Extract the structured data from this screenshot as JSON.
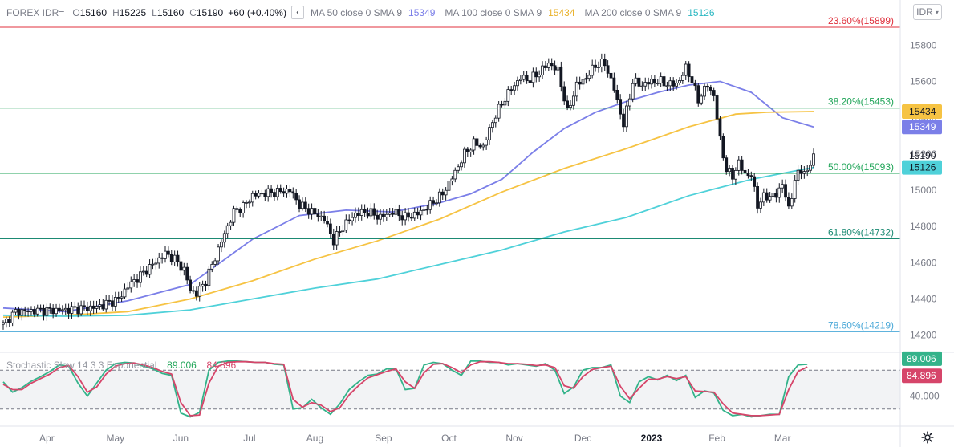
{
  "legend": {
    "symbol": "FOREX IDR=",
    "o_label": "O",
    "o_value": "15160",
    "h_label": "H",
    "h_value": "15225",
    "l_label": "L",
    "l_value": "15160",
    "c_label": "C",
    "c_value": "15190",
    "change": "+60 (+0.40%)",
    "collapse_icon": "chevron-left-icon",
    "ma50_label": "MA 50 close 0 SMA 9",
    "ma50_value": "15349",
    "ma100_label": "MA 100 close 0 SMA 9",
    "ma100_value": "15434",
    "ma200_label": "MA 200 close 0 SMA 9",
    "ma200_value": "15126"
  },
  "currency_button": "IDR",
  "stochastic": {
    "label": "Stochastic Slow 14 3 3 Exponential",
    "k_value": "89.006",
    "d_value": "84.896"
  },
  "settings_icon": "gear-icon",
  "colors": {
    "ma50": "#7b7fe8",
    "ma100": "#f6c343",
    "ma200": "#4fd1d9",
    "fib_2360": "#e0313d",
    "fib_3820": "#22a65a",
    "fib_5000": "#22a65a",
    "fib_6180": "#1b8a73",
    "fib_7860": "#4aa8d8",
    "stoch_k": "#33b38a",
    "stoch_d": "#d6456a"
  },
  "chart_data": {
    "type": "candlestick",
    "x_axis_labels": [
      "Apr",
      "May",
      "Jun",
      "Jul",
      "Aug",
      "Sep",
      "Oct",
      "Nov",
      "Dec",
      "2023",
      "Feb",
      "Mar"
    ],
    "y_axis_labels": [
      "15800",
      "15600",
      "15400",
      "15200",
      "15000",
      "14800",
      "14600",
      "14400",
      "14200"
    ],
    "ylim": [
      14110,
      15930
    ],
    "price_path": [
      [
        0,
        14260
      ],
      [
        4,
        14330
      ],
      [
        10,
        14335
      ],
      [
        20,
        14340
      ],
      [
        30,
        14355
      ],
      [
        37,
        14400
      ],
      [
        40,
        14470
      ],
      [
        44,
        14530
      ],
      [
        48,
        14590
      ],
      [
        52,
        14650
      ],
      [
        55,
        14620
      ],
      [
        58,
        14560
      ],
      [
        60,
        14450
      ],
      [
        62,
        14430
      ],
      [
        65,
        14500
      ],
      [
        68,
        14630
      ],
      [
        71,
        14760
      ],
      [
        74,
        14880
      ],
      [
        77,
        14910
      ],
      [
        80,
        14970
      ],
      [
        84,
        14985
      ],
      [
        88,
        14990
      ],
      [
        92,
        15000
      ],
      [
        95,
        14920
      ],
      [
        99,
        14880
      ],
      [
        103,
        14840
      ],
      [
        106,
        14720
      ],
      [
        109,
        14800
      ],
      [
        113,
        14870
      ],
      [
        117,
        14880
      ],
      [
        121,
        14850
      ],
      [
        125,
        14880
      ],
      [
        129,
        14850
      ],
      [
        133,
        14870
      ],
      [
        137,
        14920
      ],
      [
        141,
        14980
      ],
      [
        145,
        15100
      ],
      [
        148,
        15200
      ],
      [
        151,
        15260
      ],
      [
        154,
        15240
      ],
      [
        157,
        15380
      ],
      [
        160,
        15480
      ],
      [
        163,
        15560
      ],
      [
        166,
        15620
      ],
      [
        169,
        15610
      ],
      [
        172,
        15650
      ],
      [
        175,
        15700
      ],
      [
        178,
        15660
      ],
      [
        181,
        15430
      ],
      [
        184,
        15580
      ],
      [
        187,
        15620
      ],
      [
        190,
        15690
      ],
      [
        193,
        15700
      ],
      [
        196,
        15560
      ],
      [
        199,
        15360
      ],
      [
        202,
        15600
      ],
      [
        205,
        15580
      ],
      [
        208,
        15600
      ],
      [
        211,
        15600
      ],
      [
        214,
        15580
      ],
      [
        217,
        15600
      ],
      [
        219,
        15680
      ],
      [
        221,
        15600
      ],
      [
        223,
        15500
      ],
      [
        226,
        15580
      ],
      [
        228,
        15520
      ],
      [
        230,
        15280
      ],
      [
        232,
        15110
      ],
      [
        234,
        15080
      ],
      [
        236,
        15150
      ],
      [
        238,
        15090
      ],
      [
        240,
        15080
      ],
      [
        242,
        14920
      ],
      [
        244,
        14960
      ],
      [
        246,
        14970
      ],
      [
        248,
        14970
      ],
      [
        250,
        15040
      ],
      [
        252,
        14890
      ],
      [
        254,
        15060
      ],
      [
        256,
        15110
      ],
      [
        258,
        15100
      ],
      [
        260,
        15190
      ]
    ],
    "ma50": [
      [
        0,
        14350
      ],
      [
        20,
        14330
      ],
      [
        40,
        14390
      ],
      [
        60,
        14480
      ],
      [
        80,
        14730
      ],
      [
        95,
        14860
      ],
      [
        110,
        14890
      ],
      [
        125,
        14880
      ],
      [
        140,
        14930
      ],
      [
        150,
        14980
      ],
      [
        160,
        15060
      ],
      [
        170,
        15210
      ],
      [
        180,
        15340
      ],
      [
        190,
        15430
      ],
      [
        200,
        15490
      ],
      [
        210,
        15540
      ],
      [
        220,
        15580
      ],
      [
        230,
        15600
      ],
      [
        240,
        15540
      ],
      [
        250,
        15400
      ],
      [
        260,
        15349
      ]
    ],
    "ma100": [
      [
        0,
        14300
      ],
      [
        20,
        14310
      ],
      [
        40,
        14330
      ],
      [
        60,
        14400
      ],
      [
        80,
        14500
      ],
      [
        100,
        14620
      ],
      [
        120,
        14720
      ],
      [
        140,
        14840
      ],
      [
        160,
        14990
      ],
      [
        180,
        15120
      ],
      [
        200,
        15230
      ],
      [
        220,
        15350
      ],
      [
        235,
        15420
      ],
      [
        245,
        15430
      ],
      [
        260,
        15434
      ]
    ],
    "ma200": [
      [
        0,
        14310
      ],
      [
        20,
        14305
      ],
      [
        40,
        14310
      ],
      [
        60,
        14340
      ],
      [
        80,
        14400
      ],
      [
        100,
        14460
      ],
      [
        120,
        14510
      ],
      [
        140,
        14590
      ],
      [
        160,
        14670
      ],
      [
        180,
        14770
      ],
      [
        200,
        14850
      ],
      [
        220,
        14970
      ],
      [
        240,
        15060
      ],
      [
        255,
        15110
      ],
      [
        260,
        15126
      ]
    ],
    "fibonacci": [
      {
        "label": "23.60%(15899)",
        "value": 15899,
        "color_key": "fib_2360"
      },
      {
        "label": "38.20%(15453)",
        "value": 15453,
        "color_key": "fib_3820"
      },
      {
        "label": "50.00%(15093)",
        "value": 15093,
        "color_key": "fib_5000"
      },
      {
        "label": "61.80%(14732)",
        "value": 14732,
        "color_key": "fib_6180"
      },
      {
        "label": "78.60%(14219)",
        "value": 14219,
        "color_key": "fib_7860"
      }
    ],
    "price_tags": [
      {
        "text": "15434",
        "value": 15434,
        "color_key": "ma100",
        "fg": "#131722"
      },
      {
        "text": "15349",
        "value": 15349,
        "color_key": "ma50",
        "fg": "#ffffff"
      },
      {
        "text": "15190",
        "value": 15190,
        "color_key": "none",
        "fg": "#131722"
      },
      {
        "text": "15126",
        "value": 15126,
        "color_key": "ma200",
        "fg": "#131722"
      }
    ],
    "stoch_axis_label": "40.000",
    "stoch_levels": [
      80,
      20
    ],
    "stoch_k": [
      [
        0,
        62
      ],
      [
        3,
        46
      ],
      [
        6,
        53
      ],
      [
        9,
        63
      ],
      [
        12,
        70
      ],
      [
        15,
        78
      ],
      [
        18,
        88
      ],
      [
        21,
        86
      ],
      [
        24,
        60
      ],
      [
        27,
        40
      ],
      [
        30,
        60
      ],
      [
        33,
        80
      ],
      [
        36,
        90
      ],
      [
        39,
        92
      ],
      [
        42,
        91
      ],
      [
        45,
        86
      ],
      [
        48,
        82
      ],
      [
        51,
        75
      ],
      [
        54,
        72
      ],
      [
        57,
        14
      ],
      [
        60,
        8
      ],
      [
        63,
        15
      ],
      [
        66,
        80
      ],
      [
        69,
        92
      ],
      [
        72,
        94
      ],
      [
        75,
        94
      ],
      [
        78,
        93
      ],
      [
        81,
        92
      ],
      [
        84,
        92
      ],
      [
        87,
        89
      ],
      [
        90,
        88
      ],
      [
        93,
        20
      ],
      [
        96,
        22
      ],
      [
        99,
        35
      ],
      [
        102,
        22
      ],
      [
        105,
        12
      ],
      [
        108,
        28
      ],
      [
        111,
        50
      ],
      [
        114,
        62
      ],
      [
        117,
        72
      ],
      [
        120,
        74
      ],
      [
        123,
        82
      ],
      [
        126,
        82
      ],
      [
        129,
        50
      ],
      [
        132,
        52
      ],
      [
        135,
        88
      ],
      [
        138,
        92
      ],
      [
        141,
        90
      ],
      [
        144,
        80
      ],
      [
        147,
        72
      ],
      [
        150,
        94
      ],
      [
        153,
        94
      ],
      [
        156,
        92
      ],
      [
        159,
        92
      ],
      [
        162,
        88
      ],
      [
        165,
        90
      ],
      [
        168,
        88
      ],
      [
        171,
        86
      ],
      [
        174,
        90
      ],
      [
        177,
        80
      ],
      [
        180,
        44
      ],
      [
        183,
        54
      ],
      [
        186,
        80
      ],
      [
        189,
        84
      ],
      [
        192,
        84
      ],
      [
        195,
        88
      ],
      [
        198,
        40
      ],
      [
        201,
        30
      ],
      [
        204,
        62
      ],
      [
        207,
        70
      ],
      [
        210,
        65
      ],
      [
        213,
        72
      ],
      [
        216,
        64
      ],
      [
        219,
        72
      ],
      [
        222,
        38
      ],
      [
        225,
        48
      ],
      [
        228,
        45
      ],
      [
        231,
        18
      ],
      [
        234,
        10
      ],
      [
        237,
        12
      ],
      [
        240,
        8
      ],
      [
        243,
        10
      ],
      [
        246,
        12
      ],
      [
        249,
        12
      ],
      [
        252,
        70
      ],
      [
        255,
        88
      ],
      [
        258,
        89
      ]
    ],
    "stoch_d": [
      [
        0,
        58
      ],
      [
        3,
        50
      ],
      [
        6,
        50
      ],
      [
        9,
        60
      ],
      [
        12,
        67
      ],
      [
        15,
        74
      ],
      [
        18,
        84
      ],
      [
        21,
        87
      ],
      [
        24,
        70
      ],
      [
        27,
        46
      ],
      [
        30,
        54
      ],
      [
        33,
        74
      ],
      [
        36,
        86
      ],
      [
        39,
        90
      ],
      [
        42,
        91
      ],
      [
        45,
        88
      ],
      [
        48,
        84
      ],
      [
        51,
        78
      ],
      [
        54,
        74
      ],
      [
        57,
        30
      ],
      [
        60,
        10
      ],
      [
        63,
        11
      ],
      [
        66,
        60
      ],
      [
        69,
        86
      ],
      [
        72,
        92
      ],
      [
        75,
        93
      ],
      [
        78,
        93
      ],
      [
        81,
        92
      ],
      [
        84,
        92
      ],
      [
        87,
        90
      ],
      [
        90,
        89
      ],
      [
        93,
        35
      ],
      [
        96,
        23
      ],
      [
        99,
        30
      ],
      [
        102,
        26
      ],
      [
        105,
        16
      ],
      [
        108,
        22
      ],
      [
        111,
        42
      ],
      [
        114,
        56
      ],
      [
        117,
        68
      ],
      [
        120,
        73
      ],
      [
        123,
        78
      ],
      [
        126,
        82
      ],
      [
        129,
        62
      ],
      [
        132,
        52
      ],
      [
        135,
        76
      ],
      [
        138,
        89
      ],
      [
        141,
        90
      ],
      [
        144,
        84
      ],
      [
        147,
        76
      ],
      [
        150,
        88
      ],
      [
        153,
        93
      ],
      [
        156,
        93
      ],
      [
        159,
        92
      ],
      [
        162,
        90
      ],
      [
        165,
        90
      ],
      [
        168,
        89
      ],
      [
        171,
        87
      ],
      [
        174,
        88
      ],
      [
        177,
        84
      ],
      [
        180,
        56
      ],
      [
        183,
        52
      ],
      [
        186,
        70
      ],
      [
        189,
        81
      ],
      [
        192,
        84
      ],
      [
        195,
        86
      ],
      [
        198,
        55
      ],
      [
        201,
        36
      ],
      [
        204,
        52
      ],
      [
        207,
        66
      ],
      [
        210,
        66
      ],
      [
        213,
        70
      ],
      [
        216,
        67
      ],
      [
        219,
        70
      ],
      [
        222,
        48
      ],
      [
        225,
        47
      ],
      [
        228,
        46
      ],
      [
        231,
        28
      ],
      [
        234,
        14
      ],
      [
        237,
        12
      ],
      [
        240,
        10
      ],
      [
        243,
        10
      ],
      [
        246,
        11
      ],
      [
        249,
        12
      ],
      [
        252,
        50
      ],
      [
        255,
        78
      ],
      [
        258,
        84.9
      ]
    ]
  }
}
